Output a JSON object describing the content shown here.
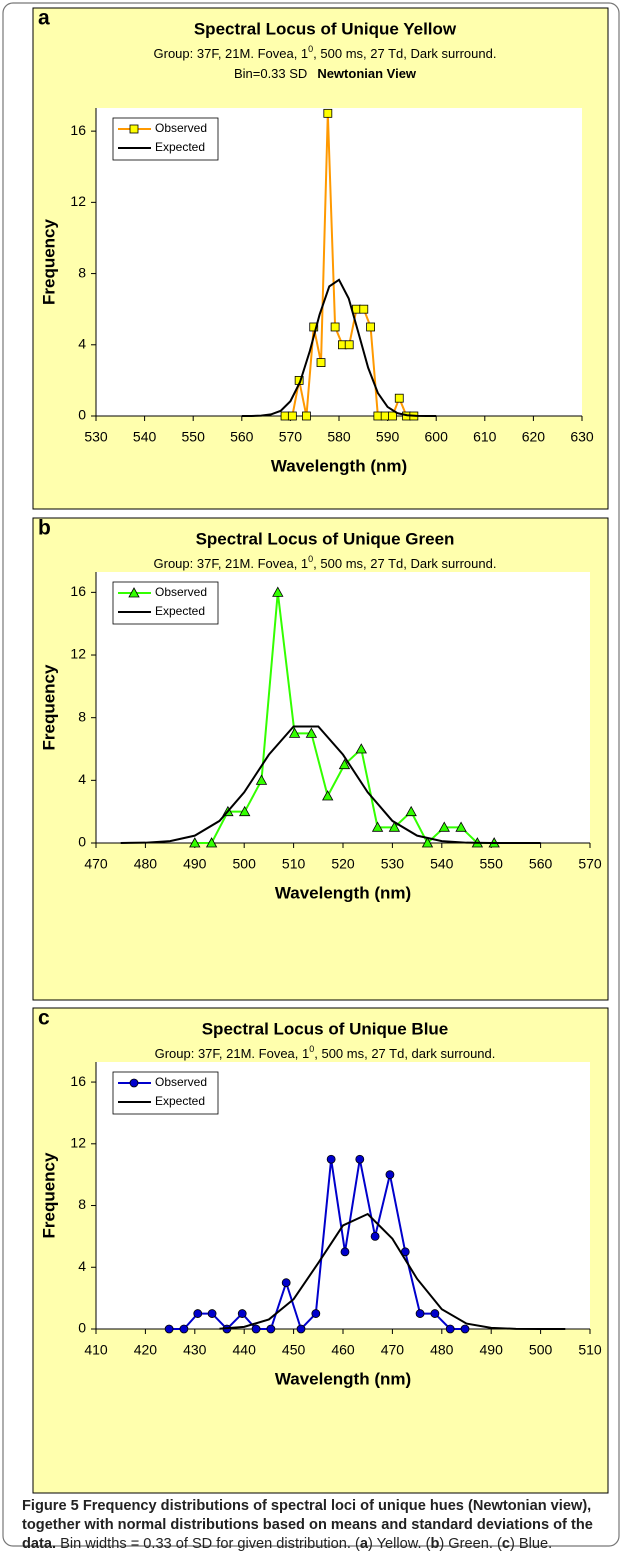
{
  "chart_data": [
    {
      "type": "line",
      "panel_label": "a",
      "title": "Spectral Locus of Unique Yellow",
      "subtitle": {
        "before": "Group: 37F, 21M. Fovea, 1",
        "superscript": "0",
        "after": ", 500 ms, 27 Td, Dark surround."
      },
      "bin_text": "Bin=0.33 SD",
      "view_text": "Newtonian View",
      "xlabel": "Wavelength (nm)",
      "ylabel": "Frequency",
      "xlim": [
        530,
        630
      ],
      "xticks": [
        530,
        540,
        550,
        560,
        570,
        580,
        590,
        600,
        610,
        620,
        630
      ],
      "ylim": [
        0,
        17.3
      ],
      "yticks": [
        0,
        4,
        8,
        12,
        16
      ],
      "grid": false,
      "legend": "upper left",
      "series": [
        {
          "name": "Observed",
          "color": "#ff9900",
          "marker": "square",
          "marker_color": "#ffff00",
          "x": [
            568.9,
            570.4,
            571.8,
            573.3,
            574.8,
            576.3,
            577.7,
            579.2,
            580.7,
            582.1,
            583.6,
            585.1,
            586.5,
            588.0,
            589.5,
            591.0,
            592.4,
            593.9,
            595.4
          ],
          "values": [
            0,
            0,
            2,
            0,
            5,
            3,
            17,
            5,
            4,
            4,
            6,
            6,
            5,
            0,
            0,
            0,
            1,
            0,
            0
          ]
        },
        {
          "name": "Expected",
          "color": "#000000",
          "x": [
            560,
            562,
            564,
            566,
            568,
            570,
            572,
            574,
            576,
            578,
            580,
            582,
            584,
            586,
            588,
            590,
            592,
            594,
            596,
            598,
            600
          ],
          "values": [
            0,
            0,
            0.02,
            0.09,
            0.29,
            0.83,
            1.92,
            3.65,
            5.69,
            7.28,
            7.65,
            6.6,
            4.67,
            2.71,
            1.29,
            0.51,
            0.16,
            0.04,
            0.01,
            0,
            0
          ]
        }
      ]
    },
    {
      "type": "line",
      "panel_label": "b",
      "title": "Spectral Locus of Unique Green",
      "subtitle": {
        "before": "Group: 37F, 21M. Fovea, 1",
        "superscript": "0",
        "after": ", 500 ms, 27 Td, Dark surround."
      },
      "bin_text": "Bin=0.33 SD",
      "view_text": "Newtonian View",
      "xlabel": "Wavelength (nm)",
      "ylabel": "Frequency",
      "xlim": [
        470,
        570
      ],
      "xticks": [
        470,
        480,
        490,
        500,
        510,
        520,
        530,
        540,
        550,
        560,
        570
      ],
      "ylim": [
        0,
        17.3
      ],
      "yticks": [
        0,
        4,
        8,
        12,
        16
      ],
      "grid": false,
      "legend": "upper left",
      "series": [
        {
          "name": "Observed",
          "color": "#33ff00",
          "marker": "triangle",
          "marker_color": "#33ff00",
          "x": [
            490.0,
            493.4,
            496.7,
            500.1,
            503.5,
            506.8,
            510.2,
            513.6,
            516.9,
            520.3,
            523.7,
            527.0,
            530.4,
            533.8,
            537.1,
            540.5,
            543.9,
            547.2,
            550.6
          ],
          "values": [
            0,
            0,
            2,
            2,
            4,
            16,
            7,
            7,
            3,
            5,
            6,
            1,
            1,
            2,
            0,
            1,
            1,
            0,
            0
          ]
        },
        {
          "name": "Expected",
          "color": "#000000",
          "x": [
            475,
            480,
            485,
            490,
            495,
            500,
            505,
            510,
            515,
            520,
            525,
            530,
            535,
            540,
            545,
            550,
            555,
            560
          ],
          "values": [
            0,
            0.02,
            0.12,
            0.47,
            1.41,
            3.24,
            5.64,
            7.44,
            7.44,
            5.64,
            3.24,
            1.41,
            0.47,
            0.12,
            0.02,
            0,
            0,
            0
          ]
        }
      ]
    },
    {
      "type": "line",
      "panel_label": "c",
      "title": "Spectral Locus of Unique Blue",
      "subtitle": {
        "before": "Group: 37F, 21M. Fovea, 1",
        "superscript": "0",
        "after": ", 500 ms, 27 Td, dark surround."
      },
      "bin_text": "Bin=0.33 SD",
      "view_text": "Newtonian View",
      "xlabel": "Wavelength (nm)",
      "ylabel": "Frequency",
      "xlim": [
        410,
        510
      ],
      "xticks": [
        410,
        420,
        430,
        440,
        450,
        460,
        470,
        480,
        490,
        500,
        510
      ],
      "ylim": [
        0,
        17.3
      ],
      "yticks": [
        0,
        4,
        8,
        12,
        16
      ],
      "grid": false,
      "legend": "upper left",
      "series": [
        {
          "name": "Observed",
          "color": "#0000cc",
          "marker": "circle",
          "marker_color": "#0000cc",
          "x": [
            424.8,
            427.8,
            430.6,
            433.5,
            436.5,
            439.6,
            442.4,
            445.4,
            448.5,
            451.5,
            454.5,
            457.6,
            460.4,
            463.4,
            466.5,
            469.5,
            472.6,
            475.6,
            478.6,
            481.7,
            484.7
          ],
          "values": [
            0,
            0,
            1,
            1,
            0,
            1,
            0,
            0,
            3,
            0,
            1,
            11,
            5,
            11,
            6,
            10,
            5,
            1,
            1,
            0,
            0
          ]
        },
        {
          "name": "Expected",
          "color": "#000000",
          "x": [
            435,
            440,
            445,
            450,
            455,
            460,
            465,
            470,
            475,
            480,
            485,
            490,
            495,
            500,
            505
          ],
          "values": [
            0.02,
            0.14,
            0.62,
            1.93,
            4.28,
            6.71,
            7.45,
            5.85,
            3.25,
            1.28,
            0.35,
            0.07,
            0.01,
            0,
            0
          ]
        }
      ]
    }
  ],
  "caption": {
    "title": "Figure 5 Frequency distributions of spectral loci of unique hues (Newtonian view), together with normal distributions based on means and standard deviations of the data.",
    "text": [
      "Bin widths = 0.33 of SD for given distribution. (",
      "a",
      ") Yellow. (",
      "b",
      ") Green. (",
      "c",
      ") Blue."
    ]
  }
}
